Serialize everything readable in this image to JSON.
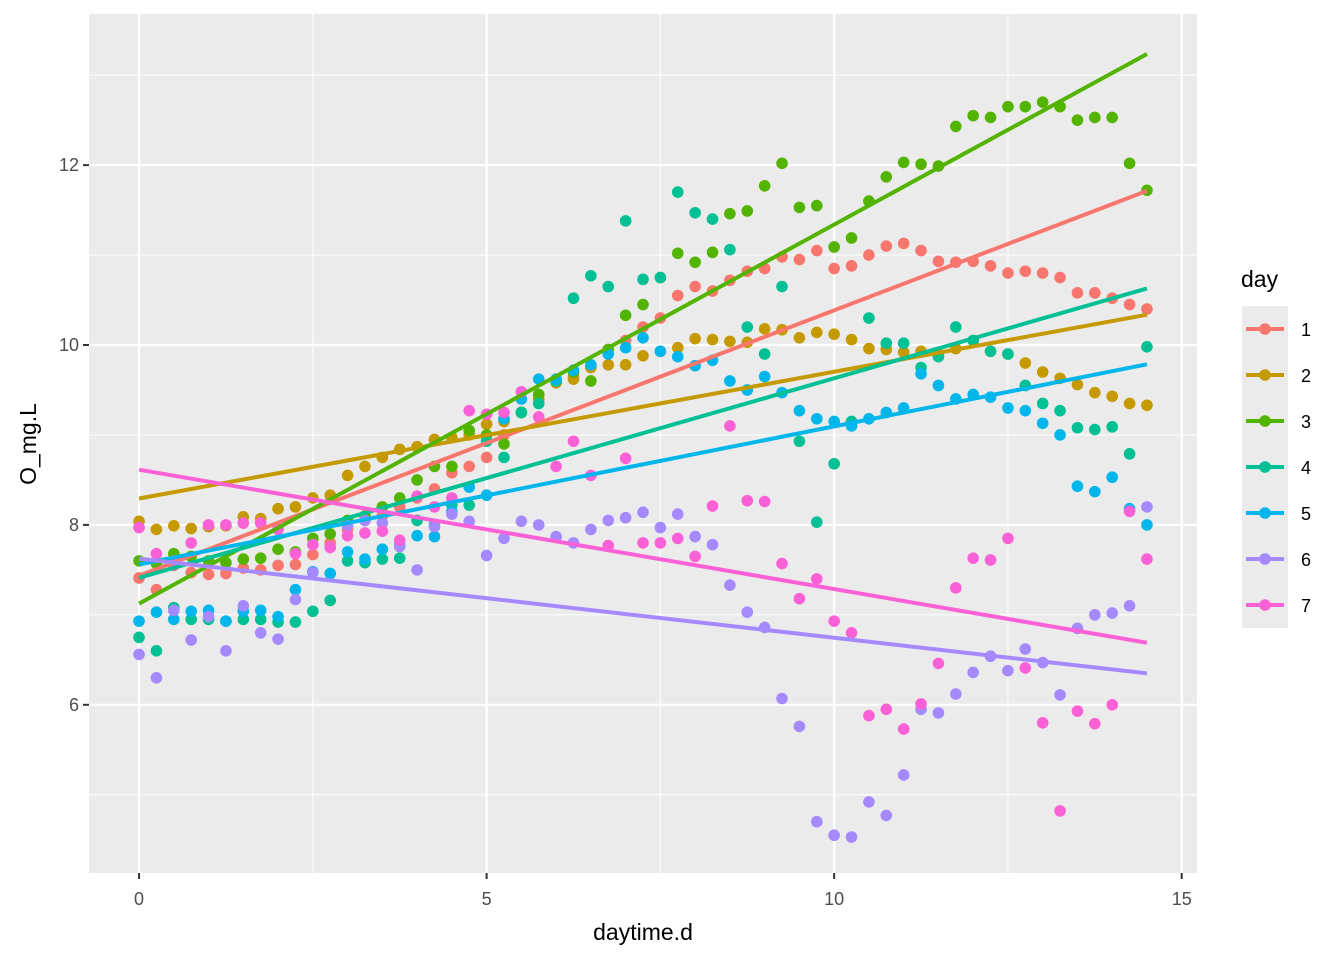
{
  "chart_data": {
    "type": "scatter",
    "overlay": "linear regression line per series",
    "xlabel": "daytime.d",
    "ylabel": "O_mg.L",
    "xlim": [
      -0.72,
      15.22
    ],
    "ylim": [
      4.13,
      13.68
    ],
    "x_ticks": [
      0,
      5,
      10,
      15
    ],
    "y_ticks": [
      6,
      8,
      10,
      12
    ],
    "grid": true,
    "legend": {
      "title": "day",
      "position": "right"
    },
    "x": [
      0,
      0.25,
      0.5,
      0.75,
      1,
      1.25,
      1.5,
      1.75,
      2,
      2.25,
      2.5,
      2.75,
      3,
      3.25,
      3.5,
      3.75,
      4,
      4.25,
      4.5,
      4.75,
      5,
      5.25,
      5.5,
      5.75,
      6,
      6.25,
      6.5,
      6.75,
      7,
      7.25,
      7.5,
      7.75,
      8,
      8.25,
      8.5,
      8.75,
      9,
      9.25,
      9.5,
      9.75,
      10,
      10.25,
      10.5,
      10.75,
      11,
      11.25,
      11.5,
      11.75,
      12,
      12.25,
      12.5,
      12.75,
      13,
      13.25,
      13.5,
      13.75,
      14,
      14.25,
      14.5
    ],
    "series": [
      {
        "name": "1",
        "color": "#F8766D",
        "values": [
          7.41,
          7.28,
          7.55,
          7.47,
          7.45,
          7.46,
          7.52,
          7.5,
          7.55,
          7.56,
          7.67,
          7.8,
          7.95,
          8.05,
          8.1,
          8.2,
          8.3,
          8.4,
          8.58,
          8.65,
          8.75,
          9.0,
          9.25,
          9.4,
          9.6,
          9.65,
          9.75,
          9.95,
          10.05,
          10.2,
          10.3,
          10.55,
          10.65,
          10.6,
          10.72,
          10.82,
          10.85,
          10.98,
          10.95,
          11.05,
          10.85,
          10.88,
          11.0,
          11.1,
          11.13,
          11.05,
          10.93,
          10.92,
          10.93,
          10.88,
          10.8,
          10.82,
          10.8,
          10.75,
          10.58,
          10.58,
          10.52,
          10.45,
          10.4
        ]
      },
      {
        "name": "2",
        "color": "#C49A00",
        "values": [
          8.04,
          7.95,
          7.99,
          7.96,
          7.98,
          7.99,
          8.09,
          8.07,
          8.18,
          8.2,
          8.3,
          8.33,
          8.55,
          8.65,
          8.75,
          8.84,
          8.87,
          8.95,
          8.97,
          9.0,
          9.12,
          9.15,
          9.25,
          9.4,
          9.58,
          9.62,
          9.75,
          9.78,
          9.78,
          9.88,
          9.93,
          9.97,
          10.07,
          10.06,
          10.04,
          10.03,
          10.18,
          10.17,
          10.08,
          10.14,
          10.12,
          10.06,
          9.96,
          9.95,
          9.92,
          9.93,
          9.9,
          9.96,
          10.05,
          9.93,
          9.9,
          9.8,
          9.7,
          9.63,
          9.56,
          9.47,
          9.43,
          9.35,
          9.33
        ]
      },
      {
        "name": "3",
        "color": "#53B400",
        "values": [
          7.6,
          7.57,
          7.68,
          7.65,
          7.6,
          7.58,
          7.62,
          7.63,
          7.73,
          7.7,
          7.85,
          7.9,
          8.05,
          8.1,
          8.2,
          8.3,
          8.5,
          8.65,
          8.65,
          9.05,
          9.0,
          8.9,
          9.25,
          9.45,
          9.6,
          9.7,
          9.6,
          9.95,
          10.33,
          10.45,
          10.75,
          11.02,
          10.92,
          11.03,
          11.46,
          11.49,
          11.77,
          12.02,
          11.53,
          11.55,
          11.09,
          11.19,
          11.6,
          11.87,
          12.03,
          12.01,
          11.99,
          12.43,
          12.55,
          12.53,
          12.65,
          12.65,
          12.7,
          12.65,
          12.5,
          12.53,
          12.53,
          12.02,
          11.72
        ]
      },
      {
        "name": "4",
        "color": "#00C094",
        "values": [
          6.75,
          6.6,
          7.08,
          6.95,
          6.95,
          6.93,
          6.95,
          6.95,
          6.92,
          6.92,
          7.04,
          7.16,
          7.6,
          7.58,
          7.62,
          7.63,
          8.05,
          8.0,
          8.22,
          8.22,
          8.93,
          8.75,
          9.25,
          9.35,
          9.6,
          10.52,
          10.77,
          10.65,
          11.38,
          10.73,
          10.75,
          11.7,
          11.47,
          11.4,
          11.06,
          10.2,
          9.9,
          10.65,
          8.93,
          8.03,
          8.68,
          9.15,
          10.3,
          10.02,
          10.02,
          9.75,
          9.87,
          10.2,
          10.05,
          9.93,
          9.9,
          9.55,
          9.35,
          9.27,
          9.08,
          9.06,
          9.09,
          8.79,
          9.98
        ]
      },
      {
        "name": "5",
        "color": "#00B6EB",
        "values": [
          6.93,
          7.03,
          6.95,
          7.04,
          7.05,
          6.93,
          7.04,
          7.05,
          6.98,
          7.28,
          7.48,
          7.46,
          7.7,
          7.62,
          7.73,
          7.78,
          7.88,
          7.87,
          8.15,
          8.42,
          8.33,
          9.18,
          9.4,
          9.62,
          9.62,
          9.72,
          9.78,
          9.9,
          9.97,
          10.08,
          9.93,
          9.87,
          9.77,
          9.83,
          9.6,
          9.5,
          9.65,
          9.47,
          9.27,
          9.18,
          9.15,
          9.1,
          9.18,
          9.25,
          9.3,
          9.68,
          9.55,
          9.4,
          9.45,
          9.42,
          9.3,
          9.27,
          9.13,
          9.0,
          8.43,
          8.37,
          8.53,
          8.18,
          8.0
        ]
      },
      {
        "name": "6",
        "color": "#A58AFF",
        "values": [
          6.56,
          6.3,
          7.05,
          6.72,
          6.98,
          6.6,
          7.1,
          6.8,
          6.73,
          7.17,
          7.47,
          7.75,
          7.99,
          8.05,
          8.02,
          7.76,
          7.5,
          7.98,
          8.12,
          8.04,
          7.66,
          7.85,
          8.04,
          8.0,
          7.87,
          7.8,
          7.95,
          8.05,
          8.08,
          8.14,
          7.97,
          8.12,
          7.87,
          7.78,
          7.33,
          7.03,
          6.86,
          6.07,
          5.76,
          4.7,
          4.55,
          4.53,
          4.92,
          4.77,
          5.22,
          5.95,
          5.91,
          6.12,
          6.36,
          6.54,
          6.38,
          6.62,
          6.47,
          6.11,
          6.85,
          7.0,
          7.02,
          7.1,
          8.2
        ]
      },
      {
        "name": "7",
        "color": "#FB61D7",
        "values": [
          7.97,
          7.68,
          7.6,
          7.8,
          8.0,
          8.0,
          8.02,
          8.02,
          7.95,
          7.68,
          7.78,
          7.75,
          7.88,
          7.91,
          7.93,
          7.83,
          8.32,
          8.2,
          8.3,
          9.27,
          9.23,
          9.25,
          9.48,
          9.2,
          8.65,
          8.93,
          8.55,
          7.77,
          8.74,
          7.8,
          7.8,
          7.85,
          7.65,
          8.21,
          9.1,
          8.27,
          8.26,
          7.57,
          7.18,
          7.4,
          6.93,
          6.8,
          5.88,
          5.95,
          5.73,
          6.01,
          6.46,
          7.3,
          7.63,
          7.61,
          7.85,
          6.41,
          5.8,
          4.82,
          5.93,
          5.79,
          6.0,
          8.15,
          7.62
        ]
      }
    ]
  }
}
